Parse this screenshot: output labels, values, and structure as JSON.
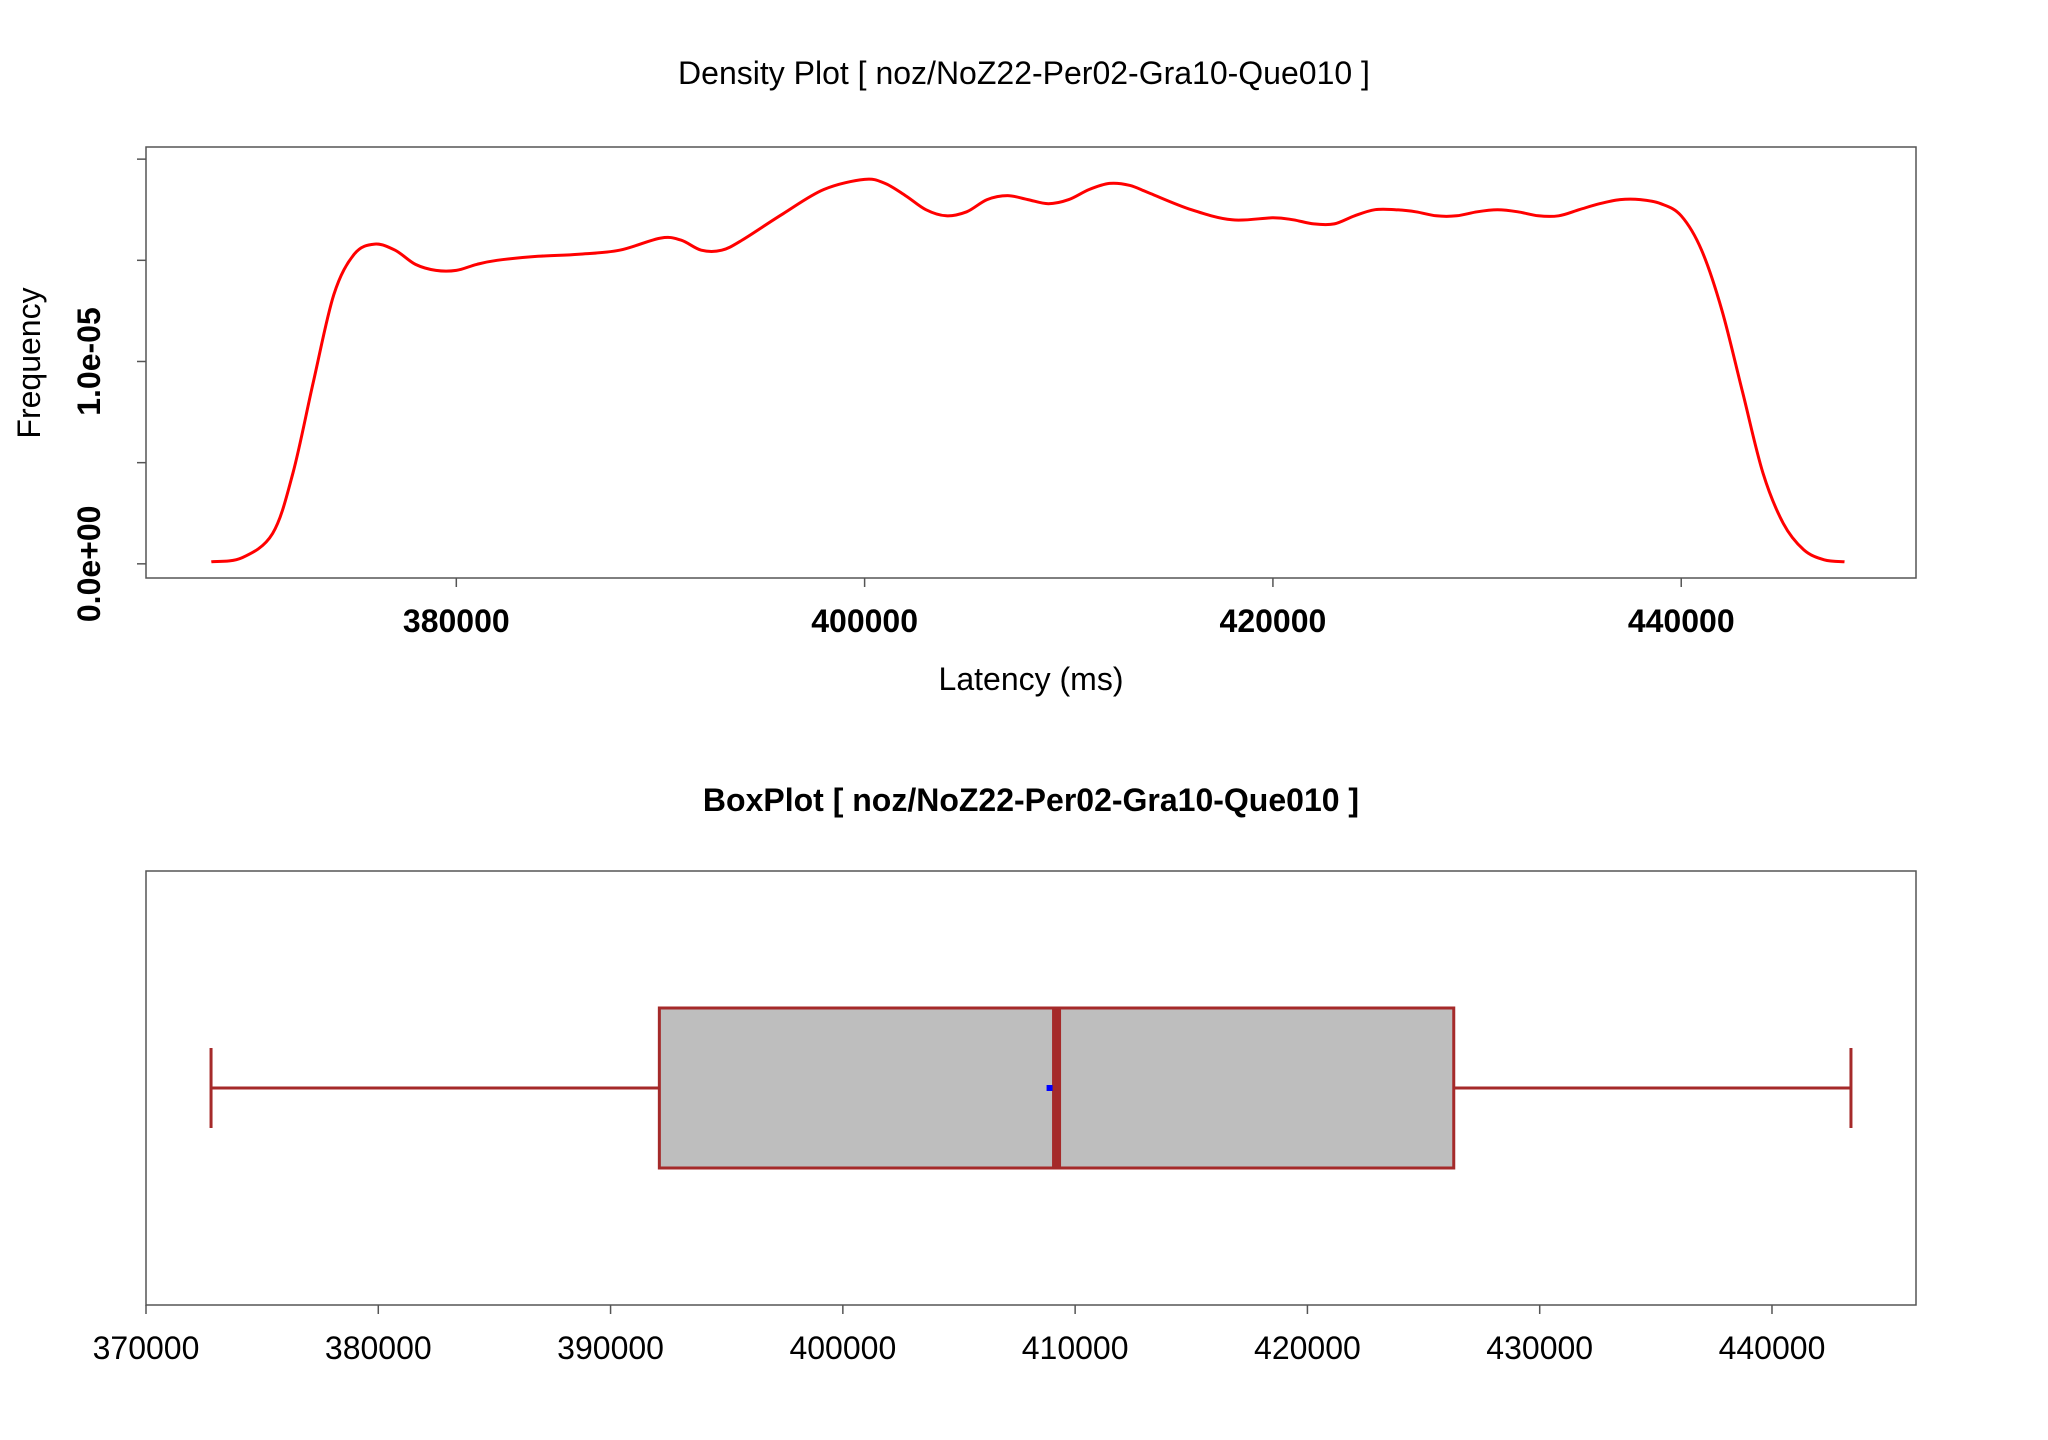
{
  "colors": {
    "density_line": "#ff0000",
    "box_border": "#a52a2a",
    "box_fill": "#bebebe",
    "mean_marker": "#0000ff",
    "axis": "#555555"
  },
  "chart_data": [
    {
      "type": "line",
      "title": "Density Plot [ noz/NoZ22-Per02-Gra10-Que010 ]",
      "xlabel": "Latency (ms)",
      "ylabel": "Frequency",
      "xlim": [
        364800,
        451500
      ],
      "ylim": [
        -7e-07,
        2.06e-05
      ],
      "x_ticks": [
        380000,
        400000,
        420000,
        440000
      ],
      "x_tick_labels": [
        "380000",
        "400000",
        "420000",
        "440000"
      ],
      "y_ticks": [
        0,
        5e-06,
        1e-05,
        1.5e-05,
        2e-05
      ],
      "y_tick_labels": [
        "0.0e+00",
        "",
        "1.0e-05",
        "",
        ""
      ],
      "grid": false,
      "series": [
        {
          "x": [
            368000,
            369500,
            371000,
            372000,
            373000,
            374000,
            375000,
            376000,
            377000,
            378000,
            379000,
            380000,
            381000,
            382000,
            384000,
            386000,
            388000,
            390000,
            391000,
            392000,
            393000,
            394000,
            396000,
            398000,
            400000,
            401000,
            402000,
            403000,
            404000,
            405000,
            406000,
            407000,
            408000,
            409000,
            410000,
            411000,
            412000,
            413000,
            414000,
            416000,
            418000,
            420000,
            421000,
            422000,
            423000,
            424000,
            425000,
            426000,
            427000,
            428000,
            429000,
            430000,
            431000,
            432000,
            433000,
            434000,
            435000,
            436000,
            437000,
            438000,
            439000,
            440000,
            441000,
            442000,
            443000,
            444000,
            445000,
            446000,
            447000,
            448000
          ],
          "y": [
            1e-07,
            3e-07,
            1.5e-06,
            4.5e-06,
            9e-06,
            1.33e-05,
            1.53e-05,
            1.58e-05,
            1.55e-05,
            1.48e-05,
            1.45e-05,
            1.45e-05,
            1.48e-05,
            1.5e-05,
            1.52e-05,
            1.53e-05,
            1.55e-05,
            1.61e-05,
            1.6e-05,
            1.55e-05,
            1.55e-05,
            1.6e-05,
            1.73e-05,
            1.85e-05,
            1.9e-05,
            1.88e-05,
            1.82e-05,
            1.75e-05,
            1.72e-05,
            1.74e-05,
            1.8e-05,
            1.82e-05,
            1.8e-05,
            1.78e-05,
            1.8e-05,
            1.85e-05,
            1.88e-05,
            1.87e-05,
            1.83e-05,
            1.75e-05,
            1.7e-05,
            1.71e-05,
            1.7e-05,
            1.68e-05,
            1.68e-05,
            1.72e-05,
            1.75e-05,
            1.75e-05,
            1.74e-05,
            1.72e-05,
            1.72e-05,
            1.74e-05,
            1.75e-05,
            1.74e-05,
            1.72e-05,
            1.72e-05,
            1.75e-05,
            1.78e-05,
            1.8e-05,
            1.8e-05,
            1.78e-05,
            1.72e-05,
            1.55e-05,
            1.25e-05,
            8.5e-06,
            4.5e-06,
            2e-06,
            7e-07,
            2e-07,
            1e-07
          ]
        }
      ]
    },
    {
      "type": "box",
      "title": "BoxPlot [ noz/NoZ22-Per02-Gra10-Que010 ]",
      "xlim": [
        370000,
        446200
      ],
      "x_ticks": [
        370000,
        380000,
        390000,
        400000,
        410000,
        420000,
        430000,
        440000
      ],
      "x_tick_labels": [
        "370000",
        "380000",
        "390000",
        "400000",
        "410000",
        "420000",
        "430000",
        "440000"
      ],
      "box": {
        "whisker_low": 372800,
        "q1": 392100,
        "median": 409200,
        "mean": 408900,
        "q3": 426300,
        "whisker_high": 443400
      }
    }
  ]
}
